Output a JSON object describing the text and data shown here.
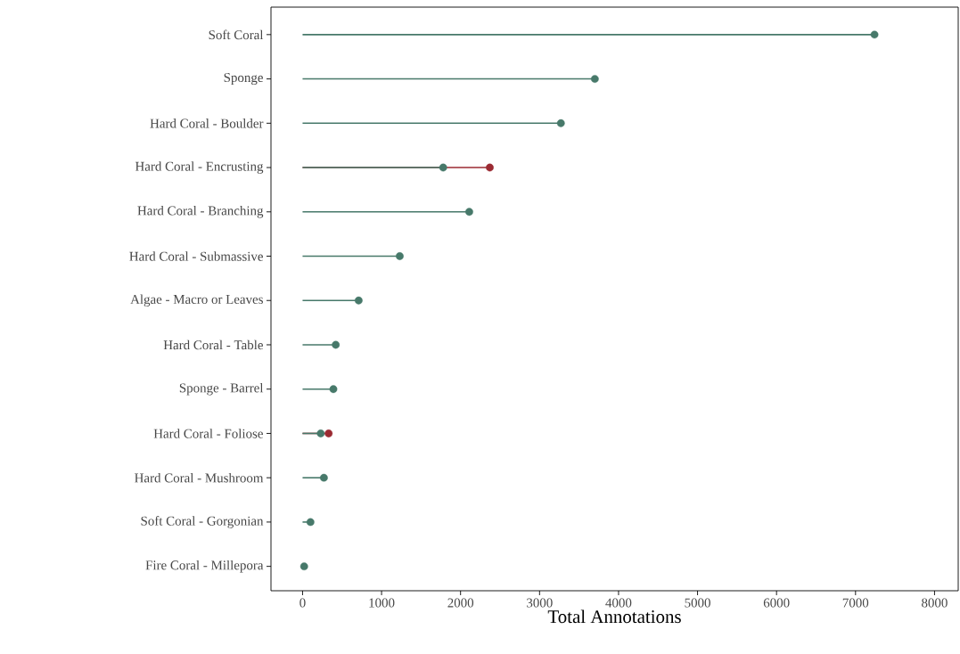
{
  "chart_data": {
    "type": "lollipop",
    "orientation": "horizontal",
    "xlabel": "Total Annotations",
    "marker": "circle",
    "categories": [
      "Soft Coral",
      "Sponge",
      "Hard Coral - Boulder",
      "Hard Coral - Encrusting",
      "Hard Coral - Branching",
      "Hard Coral - Submassive",
      "Algae - Macro or Leaves",
      "Hard Coral - Table",
      "Sponge - Barrel",
      "Hard Coral - Foliose",
      "Hard Coral - Mushroom",
      "Soft Coral - Gorgonian",
      "Fire Coral - Millepora"
    ],
    "series": [
      {
        "color": "#9b2a32",
        "values": [
          null,
          null,
          null,
          2370,
          null,
          null,
          null,
          null,
          null,
          330,
          null,
          null,
          null
        ]
      },
      {
        "color": "#47796a",
        "values": [
          7240,
          3700,
          3270,
          1780,
          2110,
          1230,
          710,
          420,
          390,
          230,
          270,
          100,
          20
        ]
      }
    ],
    "xlim": [
      -400,
      8300
    ],
    "xticks": [
      0,
      1000,
      2000,
      3000,
      4000,
      5000,
      6000,
      7000,
      8000
    ]
  }
}
